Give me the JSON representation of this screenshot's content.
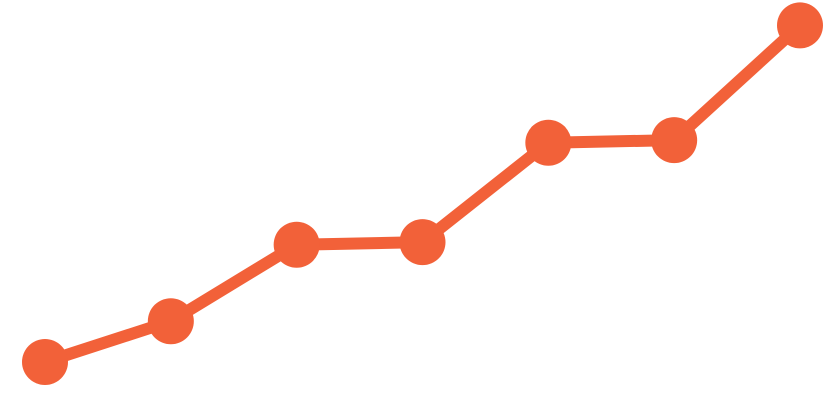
{
  "chart_data": {
    "type": "line",
    "x": [
      1,
      2,
      3,
      4,
      5,
      6,
      7
    ],
    "series": [
      {
        "values": [
          1.0,
          1.8,
          3.3,
          3.35,
          5.3,
          5.35,
          7.6
        ],
        "color": "#F26139"
      }
    ],
    "ylim": [
      0,
      8
    ],
    "grid": false,
    "legend": "none",
    "axes_visible": false
  }
}
